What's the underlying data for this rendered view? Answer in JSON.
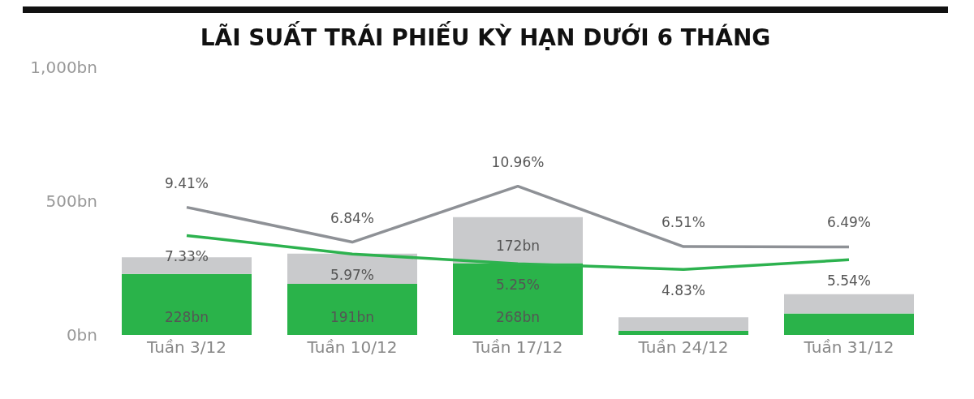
{
  "chart_data": {
    "type": "bar",
    "title": "LÃI SUẤT TRÁI PHIẾU KỲ HẠN DƯỚI 6 THÁNG",
    "categories": [
      "Tuần 3/12",
      "Tuần 10/12",
      "Tuần 17/12",
      "Tuần 24/12",
      "Tuần 31/12"
    ],
    "stacked": true,
    "series": [
      {
        "color": "#2ab34a",
        "values": [
          228,
          191,
          268,
          15,
          80
        ],
        "value_labels": [
          "228bn",
          "191bn",
          "268bn",
          null,
          null
        ]
      },
      {
        "color": "#c9cacc",
        "values": [
          62,
          113,
          172,
          51,
          72
        ],
        "value_labels": [
          null,
          null,
          "172bn",
          null,
          null
        ]
      },
      {
        "type": "line",
        "axis": "y2",
        "color": "#8e9196",
        "values": [
          9.41,
          6.84,
          10.96,
          6.51,
          6.49
        ],
        "value_labels": [
          "9.41%",
          "6.84%",
          "10.96%",
          "6.51%",
          "6.49%"
        ]
      },
      {
        "type": "line",
        "axis": "y2",
        "color": "#2db24f",
        "values": [
          7.33,
          5.97,
          5.25,
          4.83,
          5.54
        ],
        "value_labels": [
          "7.33%",
          "5.97%",
          "5.25%",
          "4.83%",
          "5.54%"
        ]
      }
    ],
    "ylim": [
      0,
      1000
    ],
    "yticks": [
      {
        "value": 0,
        "label": "0bn"
      },
      {
        "value": 500,
        "label": "500bn"
      },
      {
        "value": 1000,
        "label": "1,000bn"
      }
    ],
    "grid": false,
    "legend": false,
    "marker": "none",
    "line_style": "solid"
  }
}
